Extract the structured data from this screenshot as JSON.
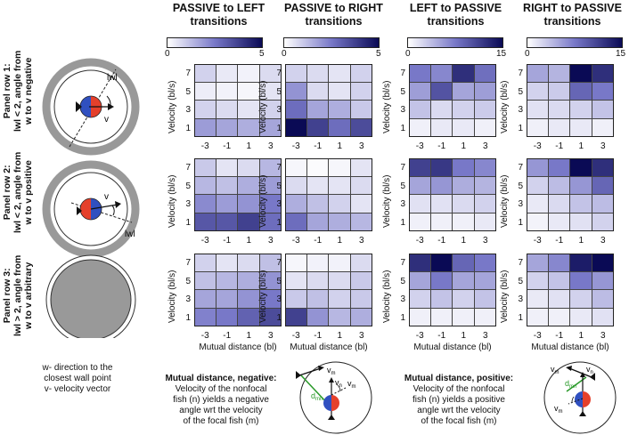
{
  "columns": [
    {
      "title_line1": "PASSIVE to LEFT",
      "title_line2": "transitions",
      "cb_min": "0",
      "cb_max": "5",
      "vmax": 5
    },
    {
      "title_line1": "PASSIVE to RIGHT",
      "title_line2": "transitions",
      "cb_min": "0",
      "cb_max": "5",
      "vmax": 5
    },
    {
      "title_line1": "LEFT to PASSIVE",
      "title_line2": "transitions",
      "cb_min": "0",
      "cb_max": "15",
      "vmax": 15
    },
    {
      "title_line1": "RIGHT to PASSIVE",
      "title_line2": "transitions",
      "cb_min": "0",
      "cb_max": "15",
      "vmax": 15
    }
  ],
  "rows": [
    {
      "line1": "Panel row 1:",
      "line2": "lwl < 2, angle from",
      "line3": "w to v negative"
    },
    {
      "line1": "Panel row 2:",
      "line2": "lwl < 2, angle from",
      "line3": "w to v positive"
    },
    {
      "line1": "Panel row 3:",
      "line2": "lwl > 2, angle from",
      "line3": "w to v arbitrary"
    }
  ],
  "schematic": {
    "w_label": "lwl",
    "v_label": "v",
    "legend_line1": "w- direction to the",
    "legend_line2": "closest wall point",
    "legend_line3": "v- velocity vector"
  },
  "axis": {
    "ylabel": "Velocity (bl/s)",
    "xlabel": "Mutual distance (bl)",
    "yticks": [
      "7",
      "5",
      "3",
      "1"
    ],
    "xticks": [
      "-3",
      "-1",
      "1",
      "3"
    ]
  },
  "notes": {
    "negative": {
      "title": "Mutual distance, negative:",
      "l1": "Velocity of the nonfocal",
      "l2": "fish (n) yields a negative",
      "l3": "angle wrt the velocity",
      "l4": "of the focal fish (m)"
    },
    "positive": {
      "title": "Mutual distance, positive:",
      "l1": "Velocity of the nonfocal",
      "l2": "fish (n) yields a positive",
      "l3": "angle wrt the velocity",
      "l4": "of the focal fish (m)"
    },
    "vm": "v",
    "vn": "v",
    "dmn": "d",
    "sub_m": "m",
    "sub_n": "n",
    "sub_mn": "mn"
  },
  "colors": {
    "low": "#ffffff",
    "high": "#0a0a55"
  },
  "chart_data": {
    "type": "heatmap",
    "x": [
      -3,
      -1,
      1,
      3
    ],
    "y": [
      7,
      5,
      3,
      1
    ],
    "xlabel": "Mutual distance (bl)",
    "ylabel": "Velocity (bl/s)",
    "panels": [
      [
        [
          [
            1.0,
            0.5,
            0.3,
            0.8
          ],
          [
            0.4,
            0.3,
            0.2,
            0.6
          ],
          [
            1.0,
            0.8,
            0.6,
            1.0
          ],
          [
            2.2,
            2.0,
            1.8,
            2.0
          ]
        ],
        [
          [
            1.2,
            0.6,
            0.8,
            1.6
          ],
          [
            1.6,
            1.4,
            1.8,
            2.2
          ],
          [
            2.6,
            2.2,
            2.4,
            3.0
          ],
          [
            3.6,
            3.6,
            4.0,
            3.2
          ]
        ],
        [
          [
            1.0,
            0.6,
            0.8,
            1.4
          ],
          [
            1.4,
            1.6,
            1.8,
            2.4
          ],
          [
            2.0,
            2.0,
            2.4,
            3.0
          ],
          [
            2.8,
            3.0,
            3.4,
            3.8
          ]
        ]
      ],
      [
        [
          [
            1.0,
            0.8,
            0.6,
            1.0
          ],
          [
            2.4,
            0.8,
            0.6,
            1.0
          ],
          [
            3.2,
            2.0,
            1.8,
            1.2
          ],
          [
            5.0,
            4.0,
            3.2,
            3.8
          ]
        ],
        [
          [
            0.2,
            0.1,
            0.2,
            0.6
          ],
          [
            0.8,
            0.6,
            0.6,
            0.8
          ],
          [
            1.8,
            1.4,
            1.0,
            0.6
          ],
          [
            3.2,
            2.0,
            1.8,
            1.6
          ]
        ],
        [
          [
            0.2,
            0.3,
            0.3,
            0.8
          ],
          [
            0.6,
            0.8,
            0.8,
            1.2
          ],
          [
            1.2,
            1.4,
            1.0,
            1.2
          ],
          [
            4.0,
            2.4,
            1.6,
            1.8
          ]
        ]
      ],
      [
        [
          [
            9.0,
            8.0,
            13.0,
            9.5
          ],
          [
            6.5,
            11.0,
            6.0,
            6.5
          ],
          [
            4.0,
            2.5,
            3.0,
            3.5
          ],
          [
            1.0,
            1.5,
            1.5,
            1.0
          ]
        ],
        [
          [
            12.0,
            12.5,
            9.0,
            8.0
          ],
          [
            6.0,
            7.0,
            5.5,
            5.0
          ],
          [
            2.0,
            2.0,
            2.5,
            3.0
          ],
          [
            1.0,
            1.0,
            1.0,
            1.5
          ]
        ],
        [
          [
            13.0,
            15.0,
            10.0,
            9.0
          ],
          [
            6.0,
            9.0,
            6.0,
            6.0
          ],
          [
            3.0,
            4.0,
            3.0,
            4.0
          ],
          [
            1.0,
            1.0,
            1.0,
            1.0
          ]
        ]
      ],
      [
        [
          [
            6.0,
            5.0,
            15.0,
            13.0
          ],
          [
            3.0,
            3.5,
            10.0,
            9.0
          ],
          [
            2.0,
            2.5,
            3.0,
            4.0
          ],
          [
            1.0,
            1.5,
            1.5,
            1.0
          ]
        ],
        [
          [
            7.0,
            9.0,
            15.0,
            13.0
          ],
          [
            3.0,
            4.5,
            7.0,
            10.0
          ],
          [
            1.5,
            2.5,
            4.0,
            4.5
          ],
          [
            0.8,
            1.5,
            2.0,
            3.0
          ]
        ],
        [
          [
            6.0,
            8.0,
            14.0,
            15.0
          ],
          [
            3.0,
            4.0,
            9.0,
            7.0
          ],
          [
            1.5,
            2.0,
            3.0,
            4.5
          ],
          [
            1.0,
            1.0,
            1.5,
            2.0
          ]
        ]
      ]
    ]
  }
}
